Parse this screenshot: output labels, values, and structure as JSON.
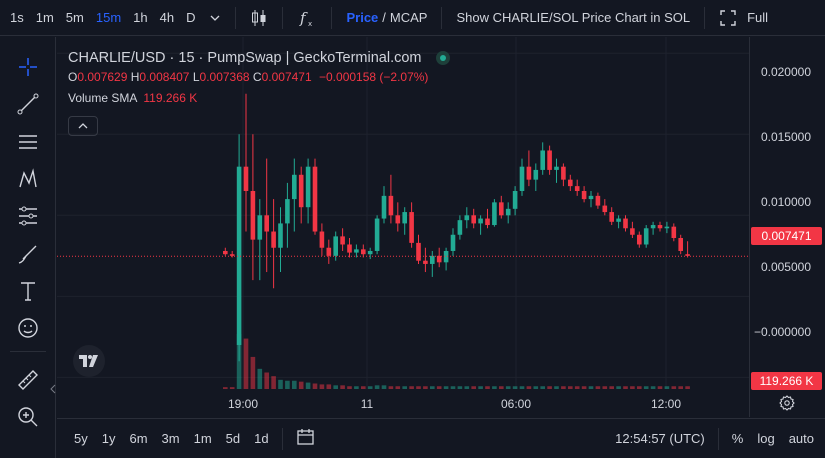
{
  "toolbar": {
    "timeframes": [
      "1s",
      "1m",
      "5m",
      "15m",
      "1h",
      "4h",
      "D"
    ],
    "active_timeframe": "15m",
    "price_label": "Price",
    "slash": "/",
    "mcap_label": "MCAP",
    "show_chart_label": "Show CHARLIE/SOL Price Chart in SOL",
    "full_label": "Full"
  },
  "legend": {
    "title": "CHARLIE/USD · 15 · PumpSwap | GeckoTerminal.com",
    "o_label": "O",
    "o_value": "0.007629",
    "h_label": "H",
    "h_value": "0.008407",
    "l_label": "L",
    "l_value": "0.007368",
    "c_label": "C",
    "c_value": "0.007471",
    "change": "−0.000158 (−2.07%)",
    "volume_label": "Volume SMA",
    "volume_value": "119.266 K"
  },
  "price_axis": {
    "ticks": [
      "0.020000",
      "0.015000",
      "0.010000",
      "0.005000",
      "−0.000000"
    ],
    "current_price": "0.007471",
    "volume_tag": "119.266 K"
  },
  "time_axis": {
    "ticks": [
      "19:00",
      "11",
      "06:00",
      "12:00"
    ]
  },
  "bottom": {
    "ranges": [
      "5y",
      "1y",
      "6m",
      "3m",
      "1m",
      "5d",
      "1d"
    ],
    "clock": "12:54:57 (UTC)",
    "percent": "%",
    "log": "log",
    "auto": "auto"
  },
  "colors": {
    "up": "#22ab94",
    "down": "#f23645",
    "accent": "#2962ff",
    "bg": "#131722"
  },
  "chart_data": {
    "type": "candlestick",
    "ylim": [
      -0.0009,
      0.021
    ],
    "ohlc": [
      [
        0.0078,
        0.008,
        0.0075,
        0.0076
      ],
      [
        0.0076,
        0.0078,
        0.0074,
        0.0075
      ],
      [
        0.002,
        0.015,
        0.001,
        0.013
      ],
      [
        0.013,
        0.0175,
        0.009,
        0.0115
      ],
      [
        0.0115,
        0.015,
        0.006,
        0.0085
      ],
      [
        0.0085,
        0.011,
        0.006,
        0.01
      ],
      [
        0.01,
        0.0135,
        0.0065,
        0.009
      ],
      [
        0.009,
        0.011,
        0.0055,
        0.008
      ],
      [
        0.008,
        0.0105,
        0.0065,
        0.0095
      ],
      [
        0.0095,
        0.012,
        0.008,
        0.011
      ],
      [
        0.011,
        0.0135,
        0.009,
        0.0125
      ],
      [
        0.0125,
        0.013,
        0.0095,
        0.0105
      ],
      [
        0.0105,
        0.0135,
        0.0095,
        0.013
      ],
      [
        0.013,
        0.0135,
        0.0088,
        0.009
      ],
      [
        0.009,
        0.0095,
        0.0075,
        0.008
      ],
      [
        0.008,
        0.0085,
        0.007,
        0.0075
      ],
      [
        0.0075,
        0.009,
        0.0072,
        0.0087
      ],
      [
        0.0087,
        0.0092,
        0.0078,
        0.0082
      ],
      [
        0.0082,
        0.0086,
        0.0074,
        0.0077
      ],
      [
        0.0077,
        0.0082,
        0.0074,
        0.0079
      ],
      [
        0.0079,
        0.0082,
        0.0074,
        0.0076
      ],
      [
        0.0076,
        0.008,
        0.0073,
        0.0078
      ],
      [
        0.0078,
        0.01,
        0.0076,
        0.0098
      ],
      [
        0.0098,
        0.0118,
        0.0095,
        0.0112
      ],
      [
        0.0112,
        0.0125,
        0.0095,
        0.01
      ],
      [
        0.01,
        0.0108,
        0.009,
        0.0095
      ],
      [
        0.0095,
        0.0105,
        0.0088,
        0.0102
      ],
      [
        0.0102,
        0.0108,
        0.008,
        0.0083
      ],
      [
        0.0083,
        0.0088,
        0.007,
        0.0072
      ],
      [
        0.0072,
        0.008,
        0.0065,
        0.007
      ],
      [
        0.007,
        0.0078,
        0.0062,
        0.0075
      ],
      [
        0.0075,
        0.008,
        0.0068,
        0.0071
      ],
      [
        0.0071,
        0.008,
        0.0066,
        0.0078
      ],
      [
        0.0078,
        0.0092,
        0.0075,
        0.0088
      ],
      [
        0.0088,
        0.01,
        0.0085,
        0.0097
      ],
      [
        0.0097,
        0.0105,
        0.0092,
        0.01
      ],
      [
        0.01,
        0.0104,
        0.0092,
        0.0095
      ],
      [
        0.0095,
        0.01,
        0.0088,
        0.0098
      ],
      [
        0.0098,
        0.0104,
        0.0092,
        0.0094
      ],
      [
        0.0094,
        0.011,
        0.0093,
        0.0108
      ],
      [
        0.0108,
        0.0112,
        0.0098,
        0.01
      ],
      [
        0.01,
        0.0108,
        0.0095,
        0.0104
      ],
      [
        0.0104,
        0.0118,
        0.01,
        0.0115
      ],
      [
        0.0115,
        0.0135,
        0.0112,
        0.013
      ],
      [
        0.013,
        0.014,
        0.0118,
        0.0122
      ],
      [
        0.0122,
        0.0132,
        0.0115,
        0.0128
      ],
      [
        0.0128,
        0.0145,
        0.0125,
        0.014
      ],
      [
        0.014,
        0.0143,
        0.0125,
        0.0128
      ],
      [
        0.0128,
        0.0135,
        0.012,
        0.013
      ],
      [
        0.013,
        0.0132,
        0.0118,
        0.0122
      ],
      [
        0.0122,
        0.0125,
        0.0115,
        0.0118
      ],
      [
        0.0118,
        0.0122,
        0.0112,
        0.0115
      ],
      [
        0.0115,
        0.0118,
        0.0108,
        0.011
      ],
      [
        0.011,
        0.0115,
        0.0105,
        0.0112
      ],
      [
        0.0112,
        0.0114,
        0.0104,
        0.0106
      ],
      [
        0.0106,
        0.011,
        0.01,
        0.0102
      ],
      [
        0.0102,
        0.0105,
        0.0094,
        0.0096
      ],
      [
        0.0096,
        0.01,
        0.0092,
        0.0098
      ],
      [
        0.0098,
        0.01,
        0.009,
        0.0092
      ],
      [
        0.0092,
        0.0096,
        0.0086,
        0.0088
      ],
      [
        0.0088,
        0.009,
        0.008,
        0.0082
      ],
      [
        0.0082,
        0.0094,
        0.008,
        0.0092
      ],
      [
        0.0092,
        0.0096,
        0.0088,
        0.0094
      ],
      [
        0.0094,
        0.0096,
        0.009,
        0.0092
      ],
      [
        0.0092,
        0.0096,
        0.0089,
        0.0093
      ],
      [
        0.0093,
        0.0095,
        0.0084,
        0.0086
      ],
      [
        0.0086,
        0.0088,
        0.0076,
        0.0078
      ],
      [
        0.0076,
        0.0084,
        0.0074,
        0.0075
      ]
    ],
    "volume": [
      2,
      2,
      60,
      55,
      35,
      22,
      18,
      14,
      10,
      9,
      9,
      8,
      7,
      6,
      5,
      5,
      4,
      4,
      3,
      3,
      3,
      3,
      4,
      4,
      3,
      3,
      3,
      3,
      3,
      3,
      3,
      3,
      3,
      3,
      3,
      3,
      3,
      3,
      3,
      3,
      3,
      3,
      3,
      3,
      3,
      3,
      3,
      3,
      3,
      3,
      3,
      3,
      3,
      3,
      3,
      3,
      3,
      3,
      3,
      3,
      3,
      3,
      3,
      3,
      3,
      3,
      3,
      3
    ]
  }
}
